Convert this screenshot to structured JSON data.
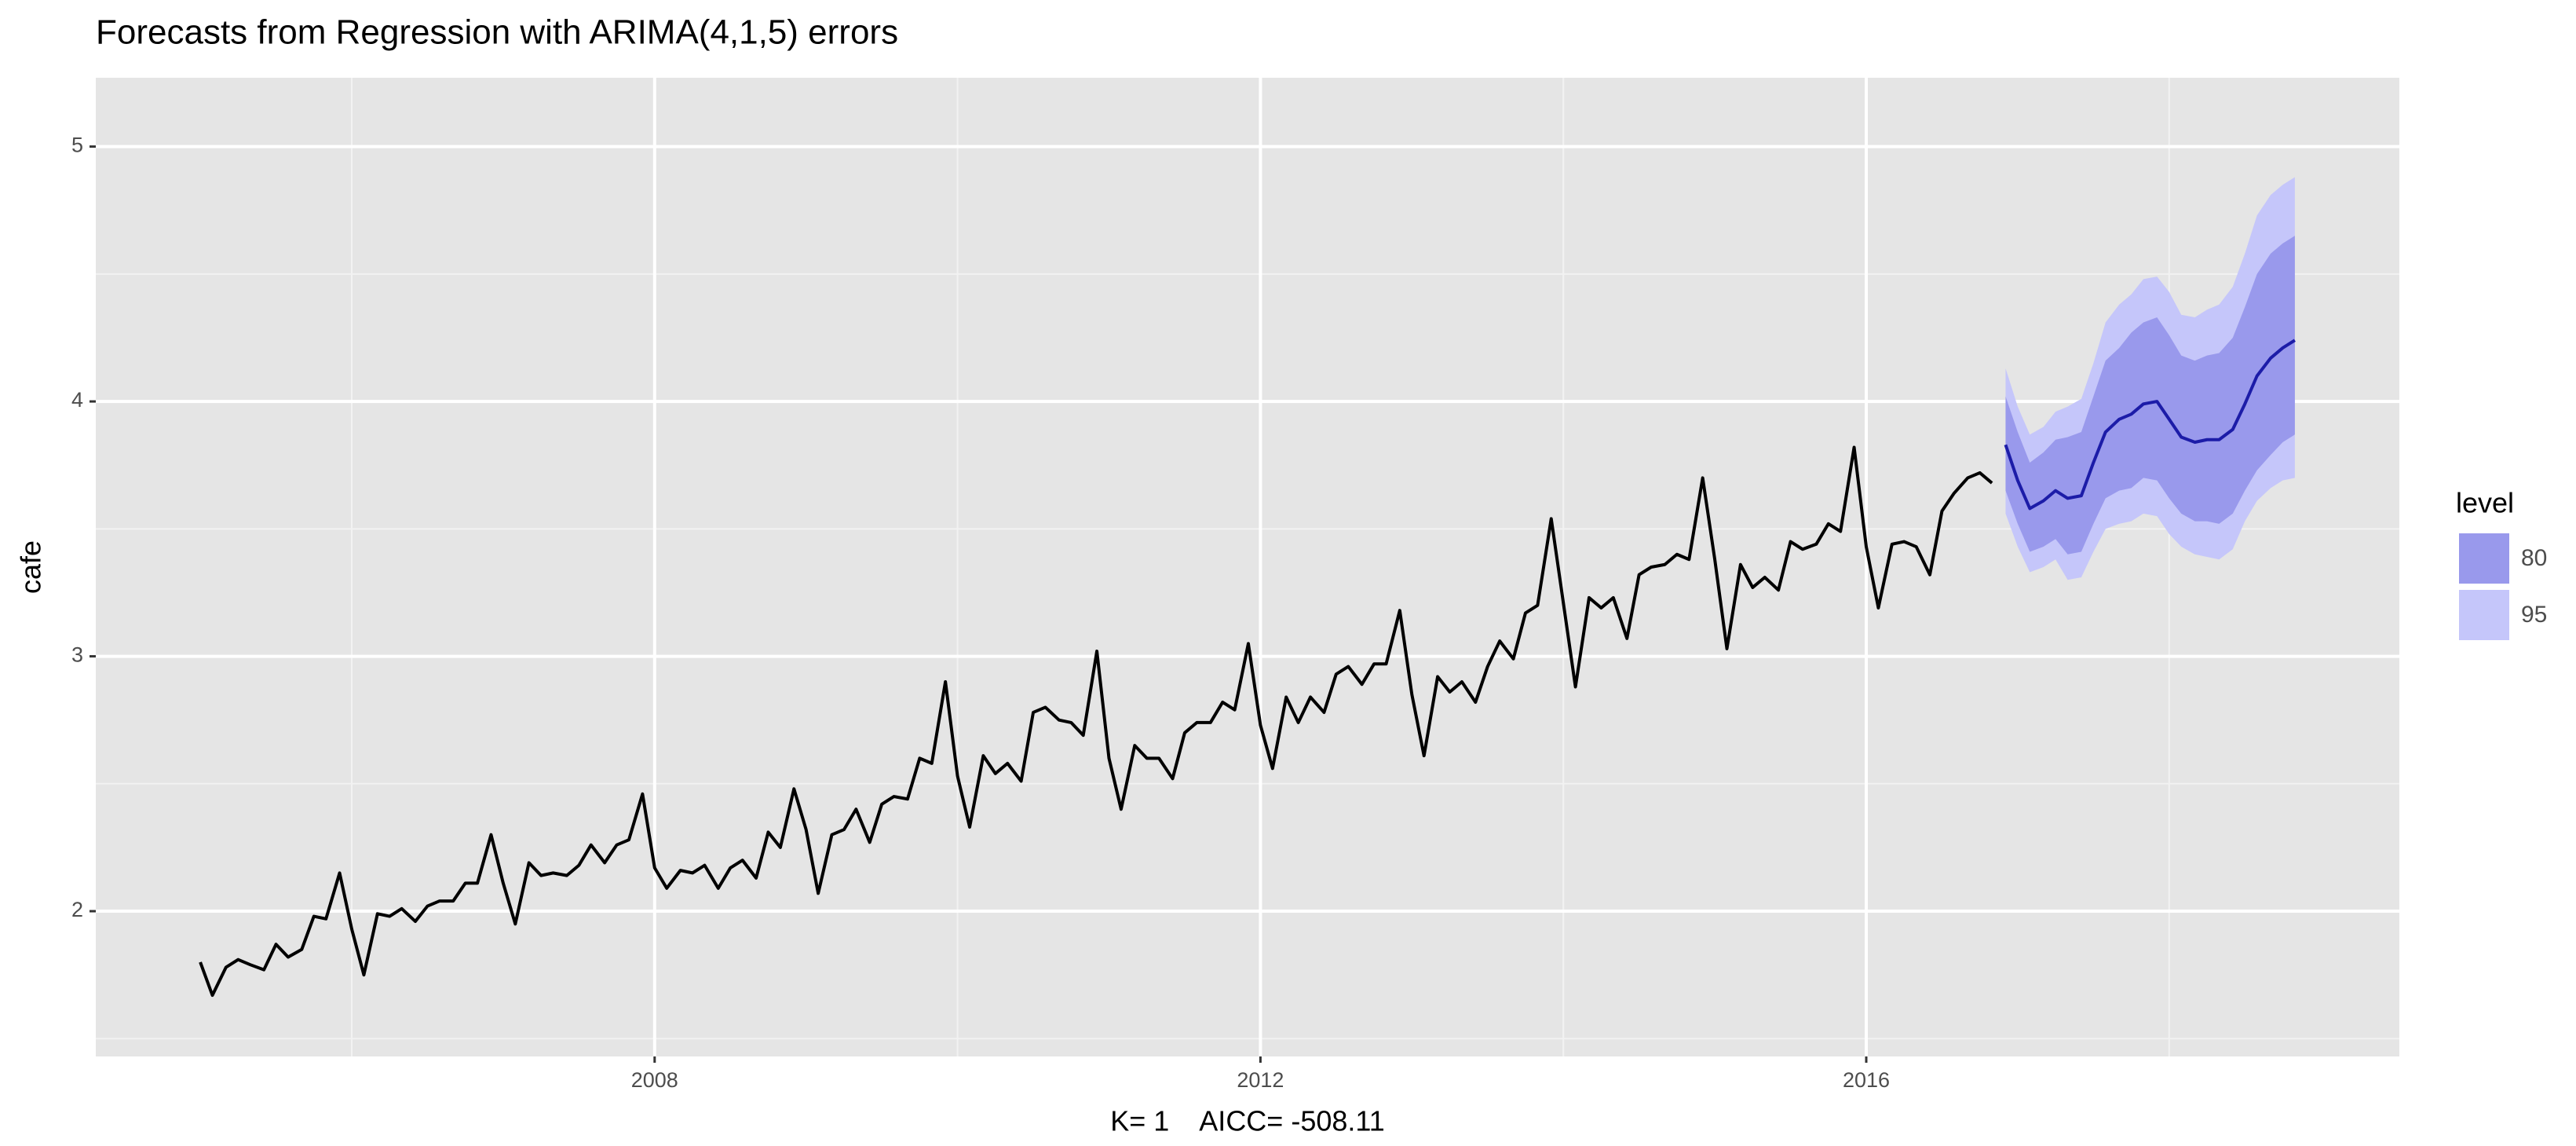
{
  "chart_data": {
    "type": "line",
    "title": "Forecasts from Regression with ARIMA(4,1,5) errors",
    "y_label": "cafe",
    "x_label": "K= 1    AICC= -508.11",
    "xlim": [
      2004.31,
      2019.52
    ],
    "xticks": [
      2008,
      2012,
      2016
    ],
    "xminorticks": [
      2006,
      2010,
      2014,
      2018
    ],
    "ylim": [
      1.43,
      5.27
    ],
    "yticks": [
      2,
      3,
      4,
      5
    ],
    "yminorticks": [
      1.5,
      2.5,
      3.5,
      4.5
    ],
    "grid": true,
    "legend_title": "level",
    "legend_position": "right",
    "history": {
      "color": "#000000",
      "x": [
        2005,
        2005.08,
        2005.17,
        2005.25,
        2005.33,
        2005.42,
        2005.5,
        2005.58,
        2005.67,
        2005.75,
        2005.83,
        2005.92,
        2006,
        2006.08,
        2006.17,
        2006.25,
        2006.33,
        2006.42,
        2006.5,
        2006.58,
        2006.67,
        2006.75,
        2006.83,
        2006.92,
        2007,
        2007.08,
        2007.17,
        2007.25,
        2007.33,
        2007.42,
        2007.5,
        2007.58,
        2007.67,
        2007.75,
        2007.83,
        2007.92,
        2008,
        2008.08,
        2008.17,
        2008.25,
        2008.33,
        2008.42,
        2008.5,
        2008.58,
        2008.67,
        2008.75,
        2008.83,
        2008.92,
        2009,
        2009.08,
        2009.17,
        2009.25,
        2009.33,
        2009.42,
        2009.5,
        2009.58,
        2009.67,
        2009.75,
        2009.83,
        2009.92,
        2010,
        2010.08,
        2010.17,
        2010.25,
        2010.33,
        2010.42,
        2010.5,
        2010.58,
        2010.67,
        2010.75,
        2010.83,
        2010.92,
        2011,
        2011.08,
        2011.17,
        2011.25,
        2011.33,
        2011.42,
        2011.5,
        2011.58,
        2011.67,
        2011.75,
        2011.83,
        2011.92,
        2012,
        2012.08,
        2012.17,
        2012.25,
        2012.33,
        2012.42,
        2012.5,
        2012.58,
        2012.67,
        2012.75,
        2012.83,
        2012.92,
        2013,
        2013.08,
        2013.17,
        2013.25,
        2013.33,
        2013.42,
        2013.5,
        2013.58,
        2013.67,
        2013.75,
        2013.83,
        2013.92,
        2014,
        2014.08,
        2014.17,
        2014.25,
        2014.33,
        2014.42,
        2014.5,
        2014.58,
        2014.67,
        2014.75,
        2014.83,
        2014.92,
        2015,
        2015.08,
        2015.17,
        2015.25,
        2015.33,
        2015.42,
        2015.5,
        2015.58,
        2015.67,
        2015.75,
        2015.83,
        2015.92,
        2016,
        2016.08,
        2016.17,
        2016.25,
        2016.33,
        2016.42,
        2016.5,
        2016.58,
        2016.67,
        2016.75,
        2016.83
      ],
      "values": [
        1.8,
        1.67,
        1.78,
        1.81,
        1.79,
        1.77,
        1.87,
        1.82,
        1.85,
        1.98,
        1.97,
        2.15,
        1.93,
        1.75,
        1.99,
        1.98,
        2.01,
        1.96,
        2.02,
        2.04,
        2.04,
        2.11,
        2.11,
        2.3,
        2.11,
        1.95,
        2.19,
        2.14,
        2.15,
        2.14,
        2.18,
        2.26,
        2.19,
        2.26,
        2.28,
        2.46,
        2.17,
        2.09,
        2.16,
        2.15,
        2.18,
        2.09,
        2.17,
        2.2,
        2.13,
        2.31,
        2.25,
        2.48,
        2.32,
        2.07,
        2.3,
        2.32,
        2.4,
        2.27,
        2.42,
        2.45,
        2.44,
        2.6,
        2.58,
        2.9,
        2.53,
        2.33,
        2.61,
        2.54,
        2.58,
        2.51,
        2.78,
        2.8,
        2.75,
        2.74,
        2.69,
        3.02,
        2.6,
        2.4,
        2.65,
        2.6,
        2.6,
        2.52,
        2.7,
        2.74,
        2.74,
        2.82,
        2.79,
        3.05,
        2.73,
        2.56,
        2.84,
        2.74,
        2.84,
        2.78,
        2.93,
        2.96,
        2.89,
        2.97,
        2.97,
        3.18,
        2.85,
        2.61,
        2.92,
        2.86,
        2.9,
        2.82,
        2.96,
        3.06,
        2.99,
        3.17,
        3.2,
        3.54,
        3.21,
        2.88,
        3.23,
        3.19,
        3.23,
        3.07,
        3.32,
        3.35,
        3.36,
        3.4,
        3.38,
        3.7,
        3.38,
        3.03,
        3.36,
        3.27,
        3.31,
        3.26,
        3.45,
        3.42,
        3.44,
        3.52,
        3.49,
        3.82,
        3.43,
        3.19,
        3.44,
        3.45,
        3.43,
        3.32,
        3.57,
        3.64,
        3.7,
        3.72,
        3.68
      ]
    },
    "forecast": {
      "color": "#1c1ca8",
      "x": [
        2016.92,
        2017,
        2017.08,
        2017.17,
        2017.25,
        2017.33,
        2017.42,
        2017.5,
        2017.58,
        2017.67,
        2017.75,
        2017.83,
        2017.92,
        2018,
        2018.08,
        2018.17,
        2018.25,
        2018.33,
        2018.42,
        2018.5,
        2018.58,
        2018.67,
        2018.75,
        2018.83
      ],
      "values": [
        3.83,
        3.69,
        3.58,
        3.61,
        3.65,
        3.62,
        3.63,
        3.76,
        3.88,
        3.93,
        3.95,
        3.99,
        4.0,
        3.93,
        3.86,
        3.84,
        3.85,
        3.85,
        3.89,
        3.99,
        4.1,
        4.17,
        4.21,
        4.24
      ],
      "bands": [
        {
          "name": "80",
          "color": "#9999ec",
          "lower": [
            3.65,
            3.52,
            3.41,
            3.43,
            3.46,
            3.4,
            3.41,
            3.52,
            3.62,
            3.65,
            3.66,
            3.7,
            3.69,
            3.62,
            3.56,
            3.53,
            3.53,
            3.52,
            3.56,
            3.65,
            3.73,
            3.79,
            3.84,
            3.87
          ],
          "upper": [
            4.02,
            3.88,
            3.76,
            3.8,
            3.85,
            3.86,
            3.88,
            4.02,
            4.16,
            4.21,
            4.27,
            4.31,
            4.33,
            4.26,
            4.18,
            4.16,
            4.18,
            4.19,
            4.25,
            4.37,
            4.5,
            4.58,
            4.62,
            4.65
          ]
        },
        {
          "name": "95",
          "color": "#c5c6fa",
          "lower": [
            3.56,
            3.43,
            3.33,
            3.35,
            3.38,
            3.3,
            3.31,
            3.41,
            3.5,
            3.52,
            3.53,
            3.56,
            3.55,
            3.48,
            3.43,
            3.4,
            3.39,
            3.38,
            3.42,
            3.53,
            3.61,
            3.66,
            3.69,
            3.7
          ],
          "upper": [
            4.13,
            3.98,
            3.87,
            3.9,
            3.96,
            3.98,
            4.01,
            4.15,
            4.31,
            4.38,
            4.42,
            4.48,
            4.49,
            4.43,
            4.34,
            4.33,
            4.36,
            4.38,
            4.45,
            4.58,
            4.73,
            4.81,
            4.85,
            4.88
          ]
        }
      ]
    }
  }
}
